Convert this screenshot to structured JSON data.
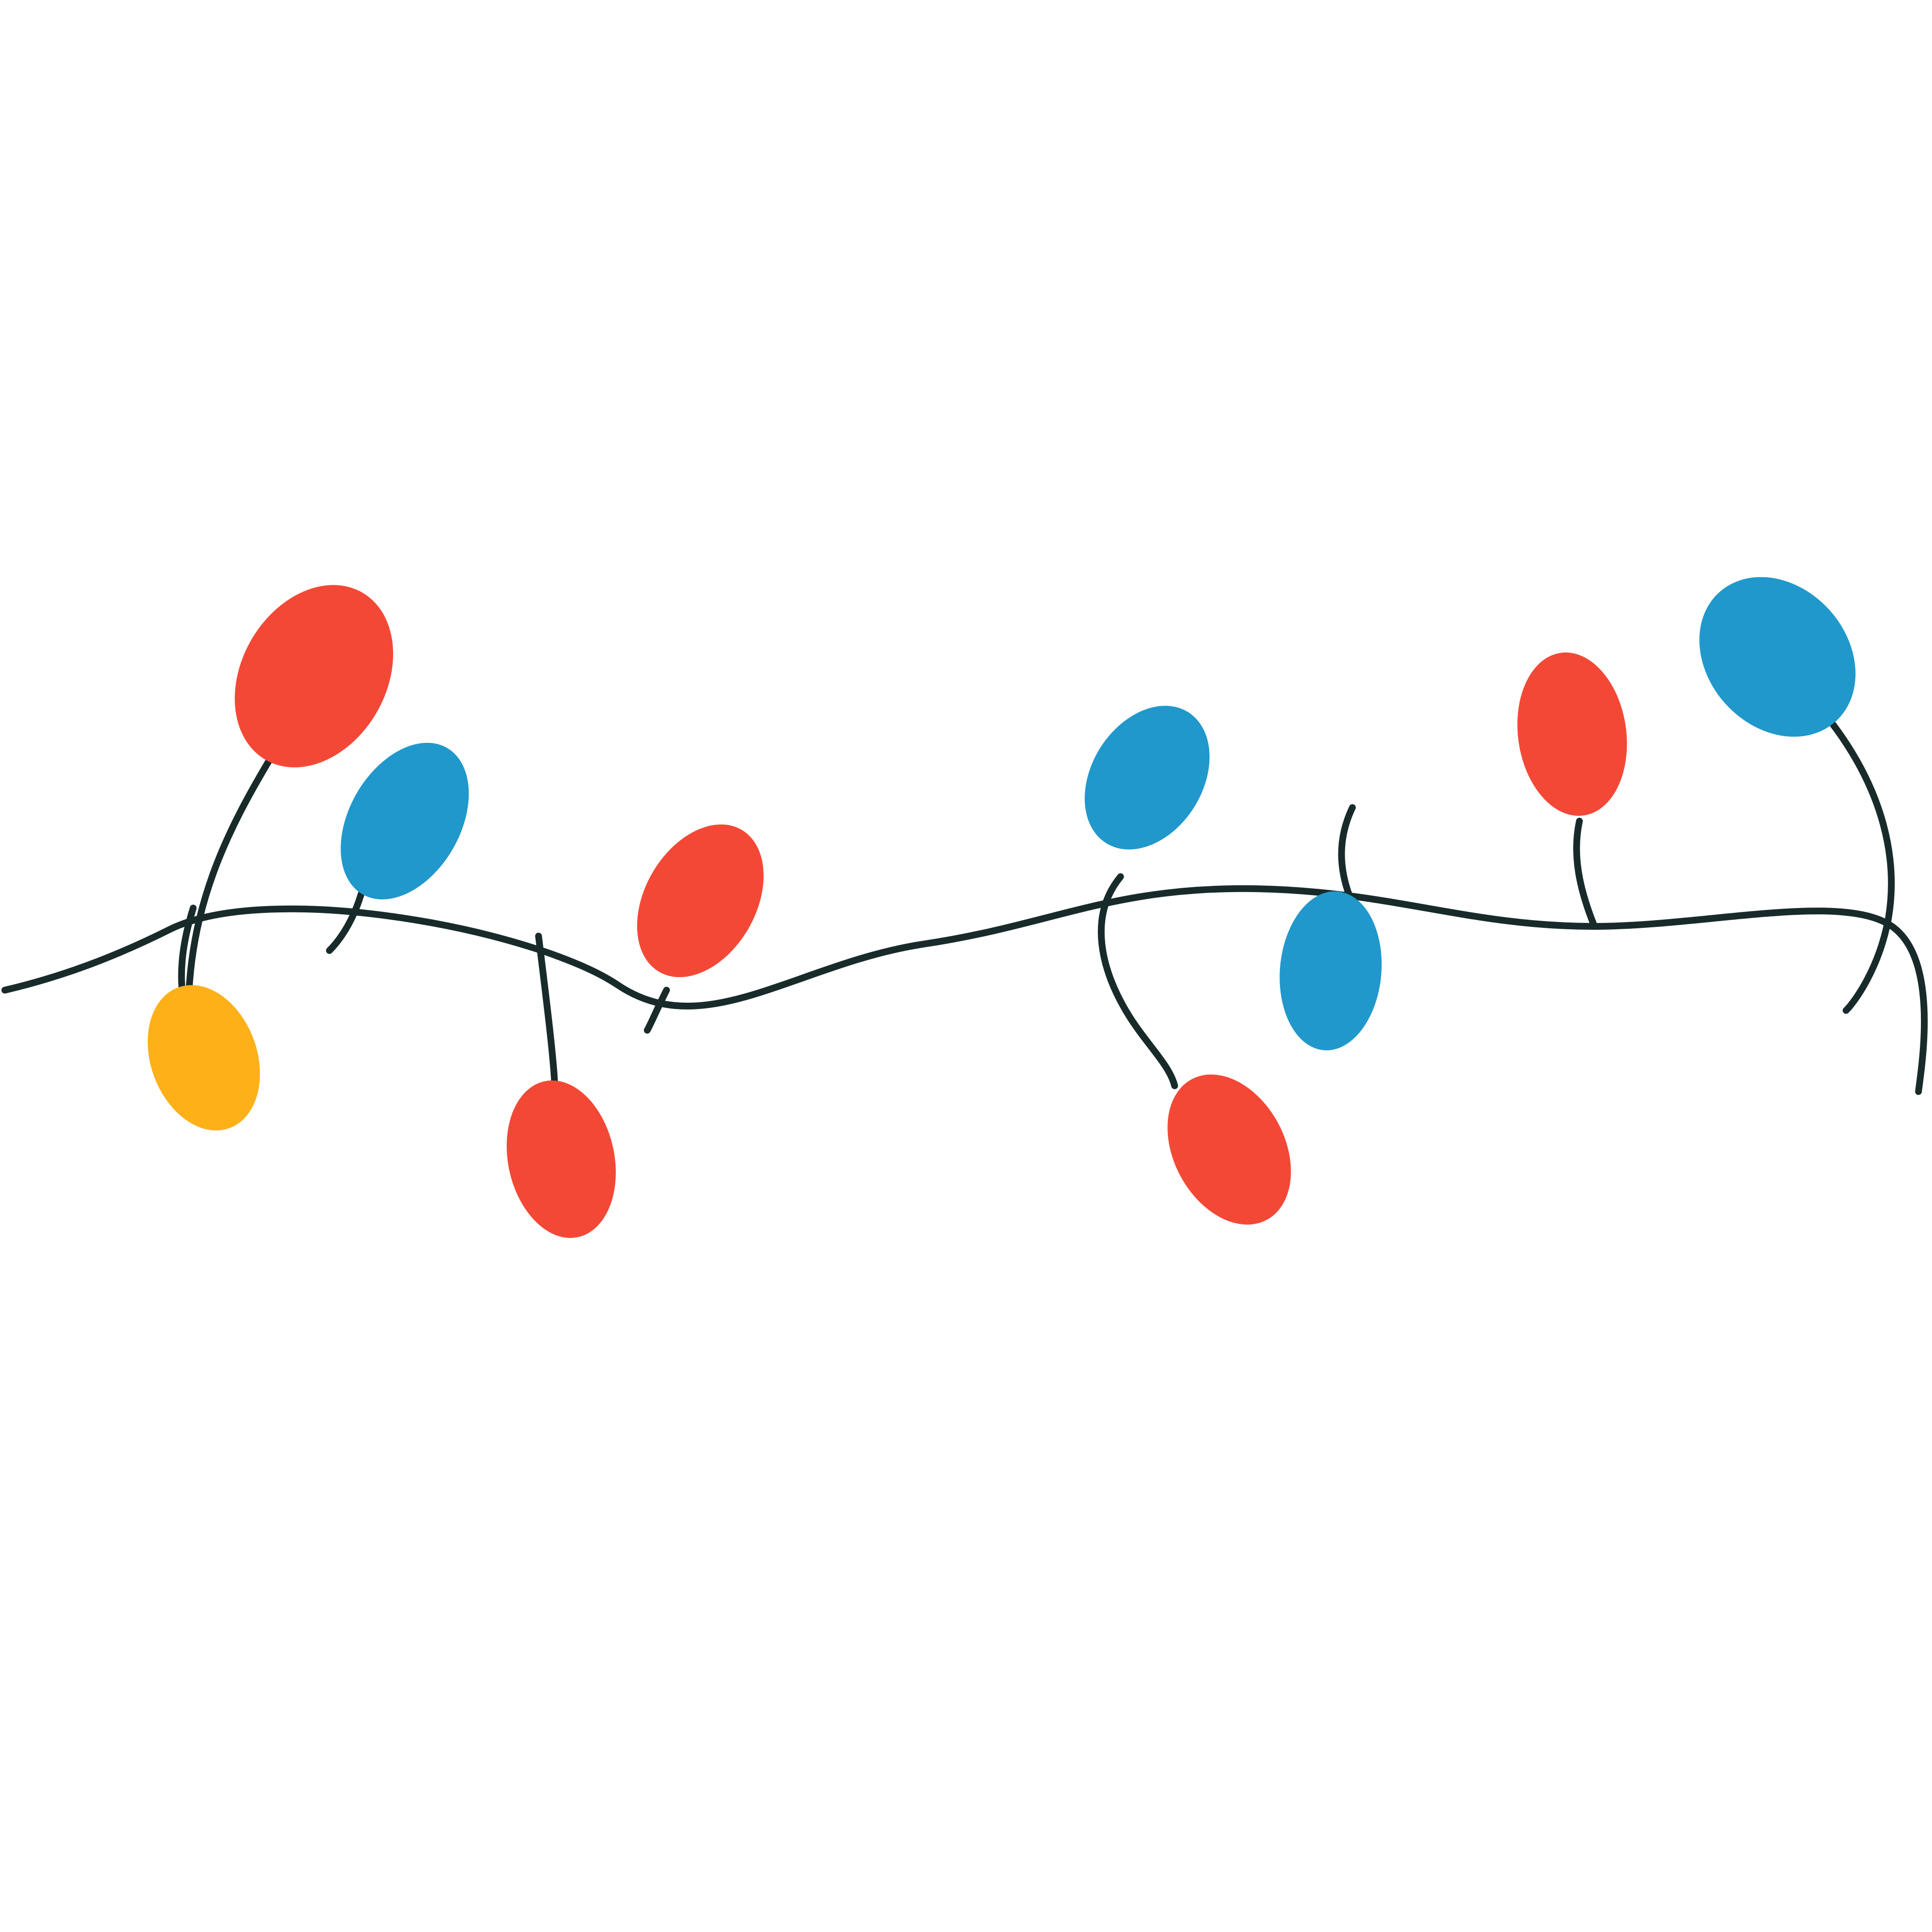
{
  "colors": {
    "background": "#ffffff",
    "wire": "#182b2a",
    "red": "#f44836",
    "blue": "#2098cc",
    "yellow": "#fdb017"
  },
  "bulbs": [
    {
      "id": "bulb-1",
      "color": "red"
    },
    {
      "id": "bulb-2",
      "color": "yellow"
    },
    {
      "id": "bulb-3",
      "color": "blue"
    },
    {
      "id": "bulb-4",
      "color": "red"
    },
    {
      "id": "bulb-5",
      "color": "red"
    },
    {
      "id": "bulb-6",
      "color": "blue"
    },
    {
      "id": "bulb-7",
      "color": "red"
    },
    {
      "id": "bulb-8",
      "color": "blue"
    },
    {
      "id": "bulb-9",
      "color": "red"
    },
    {
      "id": "bulb-10",
      "color": "blue"
    }
  ]
}
